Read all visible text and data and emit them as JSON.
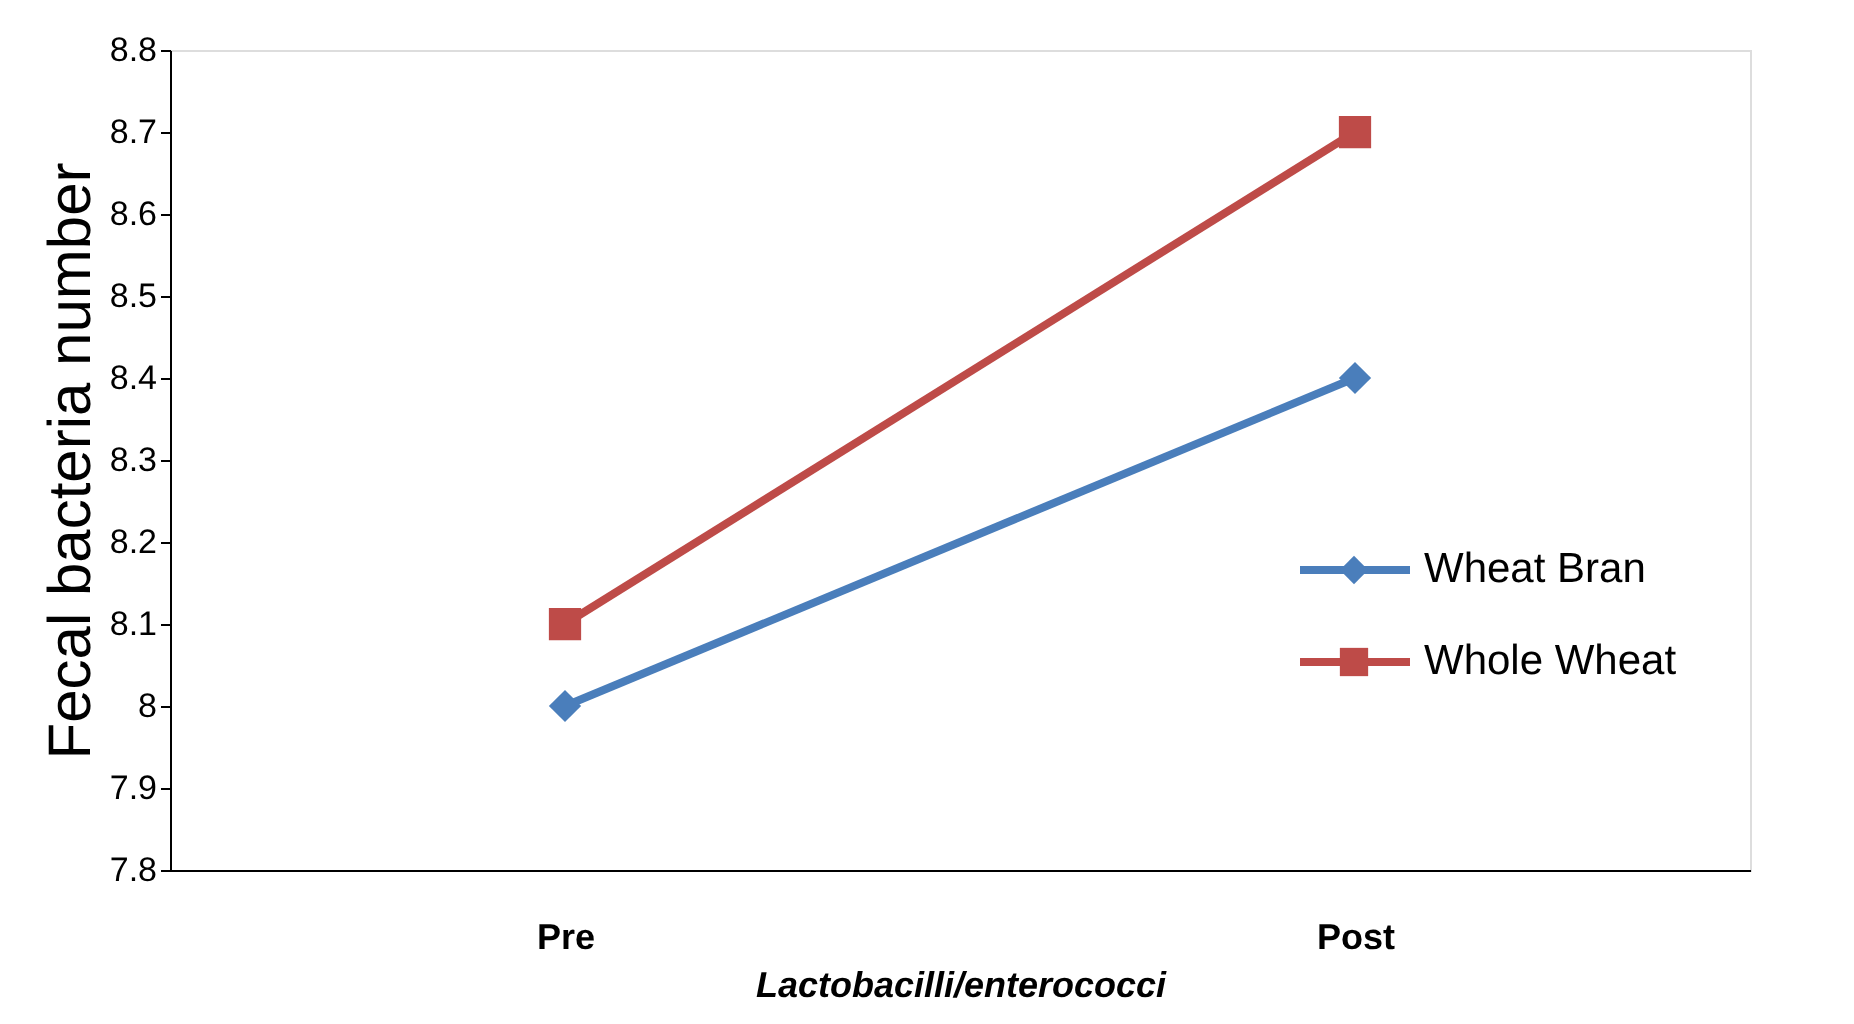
{
  "chart_data": {
    "type": "line",
    "xlabel": "Lactobacilli/enterococci",
    "ylabel": "Fecal bacteria number",
    "categories": [
      "Pre",
      "Post"
    ],
    "series": [
      {
        "name": "Wheat Bran",
        "color": "#4a7ebb",
        "values": [
          8.0,
          8.4
        ],
        "marker": "diamond"
      },
      {
        "name": "Whole Wheat",
        "color": "#be4b48",
        "values": [
          8.1,
          8.7
        ],
        "marker": "square"
      }
    ],
    "ylim": [
      7.8,
      8.8
    ],
    "yticks": [
      7.8,
      7.9,
      {
        "value": 8,
        "label": "8"
      },
      8.1,
      8.2,
      8.3,
      8.4,
      8.5,
      8.6,
      8.7,
      8.8
    ],
    "grid": false,
    "legend": "right",
    "line_style": "solid"
  }
}
